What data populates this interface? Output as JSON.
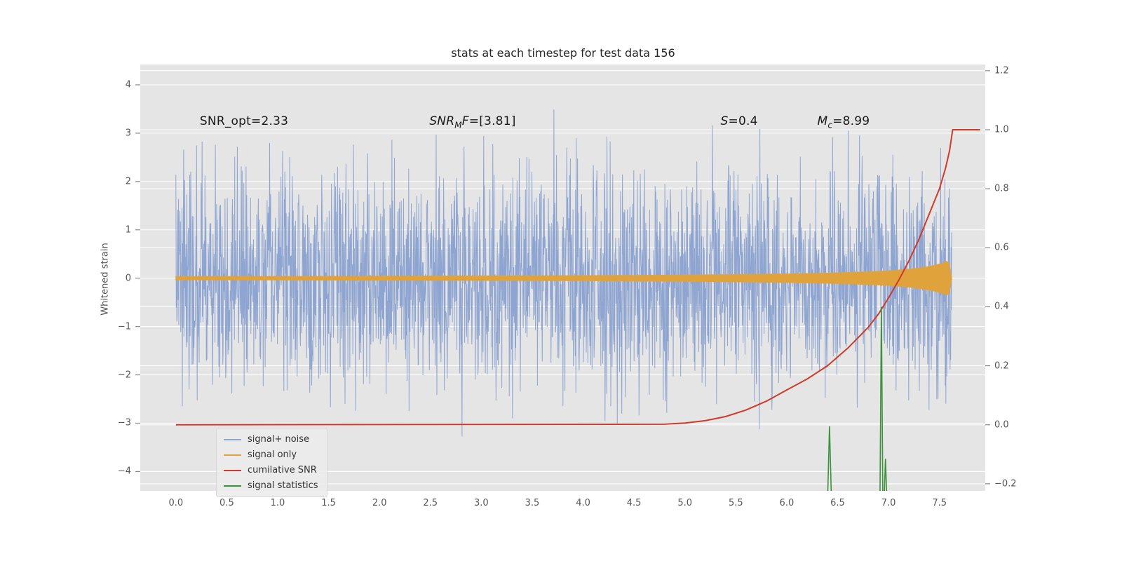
{
  "figure": {
    "background": "#ffffff",
    "plot_background": "#e5e5e5",
    "grid_color": "#ffffff",
    "tick_color": "#555555"
  },
  "chart_data": {
    "type": "line",
    "title": "stats at each timestep for test data 156",
    "xlabel": "",
    "ylabel": "Whitened strain",
    "xlim": [
      -0.35,
      7.95
    ],
    "ylim_left": [
      -4.4,
      4.42
    ],
    "ylim_right": [
      -0.224,
      1.221
    ],
    "grid": true,
    "x_ticks": [
      {
        "v": 0.0,
        "label": "0.0"
      },
      {
        "v": 0.5,
        "label": "0.5"
      },
      {
        "v": 1.0,
        "label": "1.0"
      },
      {
        "v": 1.5,
        "label": "1.5"
      },
      {
        "v": 2.0,
        "label": "2.0"
      },
      {
        "v": 2.5,
        "label": "2.5"
      },
      {
        "v": 3.0,
        "label": "3.0"
      },
      {
        "v": 3.5,
        "label": "3.5"
      },
      {
        "v": 4.0,
        "label": "4.0"
      },
      {
        "v": 4.5,
        "label": "4.5"
      },
      {
        "v": 5.0,
        "label": "5.0"
      },
      {
        "v": 5.5,
        "label": "5.5"
      },
      {
        "v": 6.0,
        "label": "6.0"
      },
      {
        "v": 6.5,
        "label": "6.5"
      },
      {
        "v": 7.0,
        "label": "7.0"
      },
      {
        "v": 7.5,
        "label": "7.5"
      }
    ],
    "y_ticks_left": [
      {
        "v": -4,
        "label": "−4"
      },
      {
        "v": -3,
        "label": "−3"
      },
      {
        "v": -2,
        "label": "−2"
      },
      {
        "v": -1,
        "label": "−1"
      },
      {
        "v": 0,
        "label": "0"
      },
      {
        "v": 1,
        "label": "1"
      },
      {
        "v": 2,
        "label": "2"
      },
      {
        "v": 3,
        "label": "3"
      },
      {
        "v": 4,
        "label": "4"
      }
    ],
    "y_ticks_right": [
      {
        "v": -0.2,
        "label": "−0.2"
      },
      {
        "v": 0.0,
        "label": "0.0"
      },
      {
        "v": 0.2,
        "label": "0.2"
      },
      {
        "v": 0.4,
        "label": "0.4"
      },
      {
        "v": 0.6,
        "label": "0.6"
      },
      {
        "v": 0.8,
        "label": "0.8"
      },
      {
        "v": 1.0,
        "label": "1.0"
      },
      {
        "v": 1.2,
        "label": "1.2"
      }
    ],
    "annotations": [
      {
        "x": 0.235,
        "y": 3.2,
        "segments": [
          {
            "text": "SNR_opt=2.33",
            "italic": false
          }
        ]
      },
      {
        "x": 2.49,
        "y": 3.2,
        "segments": [
          {
            "text": "SNR",
            "italic": true
          },
          {
            "text": "M",
            "italic": true,
            "sub": true
          },
          {
            "text": "F",
            "italic": true
          },
          {
            "text": "=[3.81]",
            "italic": false
          }
        ]
      },
      {
        "x": 5.35,
        "y": 3.2,
        "segments": [
          {
            "text": "S",
            "italic": true
          },
          {
            "text": "=0.4",
            "italic": false
          }
        ]
      },
      {
        "x": 6.3,
        "y": 3.2,
        "segments": [
          {
            "text": "M",
            "italic": true
          },
          {
            "text": "c",
            "italic": true,
            "sub": true
          },
          {
            "text": "=8.99",
            "italic": false
          }
        ]
      }
    ],
    "legend": {
      "location": "lower left",
      "items": [
        {
          "label": "signal+ noise"
        },
        {
          "label": "signal only"
        },
        {
          "label": "cumilative SNR"
        },
        {
          "label": "signal statistics"
        }
      ]
    },
    "series": [
      {
        "name": "signal+ noise",
        "kind": "noise",
        "axis": "left",
        "color": "#8fa5d1",
        "line_width": 1,
        "x_start": 0.0,
        "x_end": 7.62,
        "points": 2400,
        "std": 1.12,
        "clip": 4.05,
        "seed": 156
      },
      {
        "name": "signal only",
        "kind": "envelope",
        "axis": "left",
        "color": "#e0a33c",
        "line_width": 1,
        "envelope": [
          [
            0,
            0.035
          ],
          [
            1,
            0.038
          ],
          [
            2,
            0.042
          ],
          [
            3,
            0.047
          ],
          [
            4,
            0.053
          ],
          [
            4.5,
            0.058
          ],
          [
            5,
            0.065
          ],
          [
            5.5,
            0.075
          ],
          [
            6,
            0.09
          ],
          [
            6.4,
            0.105
          ],
          [
            6.7,
            0.125
          ],
          [
            7.0,
            0.15
          ],
          [
            7.2,
            0.185
          ],
          [
            7.35,
            0.225
          ],
          [
            7.45,
            0.265
          ],
          [
            7.52,
            0.305
          ],
          [
            7.57,
            0.35
          ],
          [
            7.595,
            0.31
          ],
          [
            7.61,
            0.12
          ],
          [
            7.62,
            0.02
          ]
        ]
      },
      {
        "name": "cumilative SNR",
        "kind": "line",
        "axis": "right",
        "color": "#d03a2a",
        "line_width": 2,
        "points": [
          [
            0,
            0.0
          ],
          [
            4.8,
            0.002
          ],
          [
            5.0,
            0.006
          ],
          [
            5.2,
            0.014
          ],
          [
            5.4,
            0.028
          ],
          [
            5.6,
            0.05
          ],
          [
            5.8,
            0.08
          ],
          [
            6.0,
            0.118
          ],
          [
            6.2,
            0.155
          ],
          [
            6.4,
            0.2
          ],
          [
            6.6,
            0.26
          ],
          [
            6.8,
            0.33
          ],
          [
            6.9,
            0.375
          ],
          [
            7.0,
            0.43
          ],
          [
            7.1,
            0.49
          ],
          [
            7.2,
            0.555
          ],
          [
            7.3,
            0.63
          ],
          [
            7.4,
            0.715
          ],
          [
            7.5,
            0.8
          ],
          [
            7.56,
            0.87
          ],
          [
            7.6,
            0.93
          ],
          [
            7.63,
            1.0
          ],
          [
            7.9,
            1.0
          ]
        ]
      },
      {
        "name": "signal statistics",
        "kind": "spikes",
        "axis": "right",
        "color": "#3a923a",
        "line_width": 1.6,
        "baseline": -0.24,
        "spikes": [
          {
            "x": 6.42,
            "peak": -0.005,
            "half_width": 0.018
          },
          {
            "x": 6.93,
            "peak": 0.4,
            "half_width": 0.014
          },
          {
            "x": 6.97,
            "peak": -0.115,
            "half_width": 0.012
          }
        ]
      }
    ]
  }
}
